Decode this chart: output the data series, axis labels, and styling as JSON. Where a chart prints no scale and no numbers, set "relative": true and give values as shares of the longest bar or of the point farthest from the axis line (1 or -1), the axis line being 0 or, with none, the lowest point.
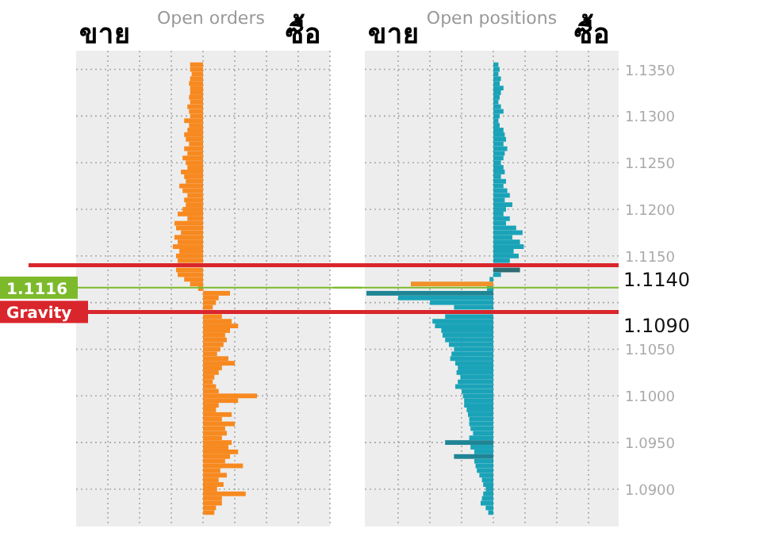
{
  "chart_data": [
    {
      "type": "bar",
      "orientation": "horizontal",
      "relative": true,
      "title": "Open orders",
      "annotations": [
        "ขาย",
        "ซื้อ"
      ],
      "grid": true,
      "tick_labels": false,
      "ylim": [
        1.086,
        1.137
      ],
      "yticks": [
        1.09,
        1.095,
        1.1,
        1.105,
        1.11,
        1.115,
        1.12,
        1.125,
        1.13,
        1.135
      ],
      "x": [
        1.1355,
        1.135,
        1.1345,
        1.134,
        1.1335,
        1.133,
        1.1325,
        1.132,
        1.1315,
        1.131,
        1.1305,
        1.13,
        1.1295,
        1.129,
        1.1285,
        1.128,
        1.1275,
        1.127,
        1.1265,
        1.126,
        1.1255,
        1.125,
        1.1245,
        1.124,
        1.1235,
        1.123,
        1.1225,
        1.122,
        1.1215,
        1.121,
        1.1205,
        1.12,
        1.1195,
        1.119,
        1.1185,
        1.118,
        1.1175,
        1.117,
        1.1165,
        1.116,
        1.1155,
        1.115,
        1.1145,
        1.114,
        1.1135,
        1.113,
        1.1125,
        1.112,
        1.1115,
        1.111,
        1.1105,
        1.11,
        1.1095,
        1.109,
        1.1085,
        1.108,
        1.1075,
        1.107,
        1.1065,
        1.106,
        1.1055,
        1.105,
        1.1045,
        1.104,
        1.1035,
        1.103,
        1.1025,
        1.102,
        1.1015,
        1.101,
        1.1005,
        1.1,
        1.0995,
        1.099,
        1.0985,
        1.098,
        1.0975,
        1.097,
        1.0965,
        1.096,
        1.0955,
        1.095,
        1.0945,
        1.094,
        1.0935,
        1.093,
        1.0925,
        1.092,
        1.0915,
        1.091,
        1.0905,
        1.09,
        1.0895,
        1.089,
        1.0885,
        1.088,
        1.0875
      ],
      "series": [
        {
          "color": "#f7891f",
          "values": [
            -0.24,
            -0.24,
            -0.21,
            -0.24,
            -0.26,
            -0.24,
            -0.24,
            -0.26,
            -0.24,
            -0.29,
            -0.26,
            -0.24,
            -0.35,
            -0.26,
            -0.29,
            -0.35,
            -0.32,
            -0.26,
            -0.35,
            -0.29,
            -0.38,
            -0.32,
            -0.29,
            -0.41,
            -0.35,
            -0.32,
            -0.44,
            -0.38,
            -0.29,
            -0.35,
            -0.32,
            -0.38,
            -0.47,
            -0.29,
            -0.53,
            -0.5,
            -0.41,
            -0.53,
            -0.47,
            -0.56,
            -0.44,
            -0.5,
            -0.47,
            null,
            -0.5,
            -0.47,
            -0.35,
            -0.24,
            -0.09,
            0.5,
            0.29,
            0.24,
            0.18,
            null,
            0.35,
            0.53,
            0.65,
            0.5,
            0.41,
            0.44,
            0.38,
            0.32,
            0.26,
            0.47,
            0.59,
            0.35,
            0.29,
            0.21,
            0.18,
            0.24,
            0.29,
            1,
            0.65,
            0.29,
            0.24,
            0.53,
            0.35,
            0.59,
            0.41,
            0.44,
            0.35,
            0.53,
            0.47,
            0.65,
            0.5,
            0.41,
            0.74,
            0.32,
            0.44,
            0.29,
            0.38,
            0.26,
            0.79,
            0.35,
            0.35,
            0.24,
            0.21
          ]
        }
      ],
      "ref_lines": [
        {
          "axis": "y",
          "value": 1.114,
          "color": "#d9262c"
        },
        {
          "axis": "y",
          "value": 1.1116,
          "color": "#7cba2c",
          "label": "1.1116"
        },
        {
          "axis": "y",
          "value": 1.109,
          "color": "#d9262c",
          "label": "Gravity"
        }
      ]
    },
    {
      "type": "bar",
      "orientation": "horizontal",
      "relative": true,
      "title": "Open positions",
      "annotations": [
        "ขาย",
        "ซื้อ"
      ],
      "grid": true,
      "tick_labels": "y",
      "ylim": [
        1.086,
        1.137
      ],
      "yticks": [
        {
          "value": 1.09,
          "label": "1.0900"
        },
        {
          "value": 1.095,
          "label": "1.0950"
        },
        {
          "value": 1.1,
          "label": "1.1000"
        },
        {
          "value": 1.105,
          "label": "1.1050"
        },
        {
          "value": 1.11,
          "label": null
        },
        {
          "value": 1.115,
          "label": "1.1150"
        },
        {
          "value": 1.12,
          "label": "1.1200"
        },
        {
          "value": 1.125,
          "label": "1.1250"
        },
        {
          "value": 1.13,
          "label": "1.1300"
        },
        {
          "value": 1.135,
          "label": "1.1350"
        }
      ],
      "x": [
        1.1355,
        1.135,
        1.1345,
        1.134,
        1.1335,
        1.133,
        1.1325,
        1.132,
        1.1315,
        1.131,
        1.1305,
        1.13,
        1.1295,
        1.129,
        1.1285,
        1.128,
        1.1275,
        1.127,
        1.1265,
        1.126,
        1.1255,
        1.125,
        1.1245,
        1.124,
        1.1235,
        1.123,
        1.1225,
        1.122,
        1.1215,
        1.121,
        1.1205,
        1.12,
        1.1195,
        1.119,
        1.1185,
        1.118,
        1.1175,
        1.117,
        1.1165,
        1.116,
        1.1155,
        1.115,
        1.1145,
        1.114,
        1.1135,
        1.113,
        1.1125,
        1.112,
        1.1115,
        1.111,
        1.1105,
        1.11,
        1.1095,
        1.109,
        1.1085,
        1.108,
        1.1075,
        1.107,
        1.1065,
        1.106,
        1.1055,
        1.105,
        1.1045,
        1.104,
        1.1035,
        1.103,
        1.1025,
        1.102,
        1.1015,
        1.101,
        1.1005,
        1.1,
        1.0995,
        1.099,
        1.0985,
        1.098,
        1.0975,
        1.097,
        1.0965,
        1.096,
        1.0955,
        1.095,
        1.0945,
        1.094,
        1.0935,
        1.093,
        1.0925,
        1.092,
        1.0915,
        1.091,
        1.0905,
        1.09,
        1.0895,
        1.089,
        1.0885,
        1.088,
        1.0875
      ],
      "series": [
        {
          "values": [
            0.04,
            0.05,
            0.04,
            0.06,
            0.05,
            0.08,
            0.06,
            0.05,
            0.04,
            0.06,
            0.08,
            0.05,
            0.04,
            0.05,
            0.08,
            0.09,
            0.1,
            0.08,
            0.11,
            0.09,
            0.08,
            0.06,
            0.08,
            0.09,
            0.06,
            0.1,
            0.08,
            0.11,
            0.13,
            0.09,
            0.15,
            0.1,
            0.08,
            0.13,
            0.1,
            0.18,
            0.23,
            0.15,
            0.21,
            0.24,
            0.16,
            0.2,
            0.13,
            null,
            0.21,
            0.06,
            -0.03,
            -0.65,
            -0.05,
            -1,
            -0.75,
            -0.5,
            -0.31,
            null,
            -0.38,
            -0.48,
            -0.46,
            -0.41,
            -0.4,
            -0.38,
            -0.35,
            -0.31,
            -0.33,
            -0.34,
            -0.3,
            -0.28,
            -0.29,
            -0.26,
            -0.28,
            -0.3,
            -0.25,
            -0.24,
            -0.23,
            -0.23,
            -0.21,
            -0.2,
            -0.19,
            -0.19,
            -0.18,
            -0.16,
            -0.19,
            -0.38,
            -0.18,
            -0.15,
            -0.31,
            -0.15,
            -0.14,
            -0.13,
            -0.11,
            -0.09,
            -0.08,
            -0.06,
            -0.08,
            -0.09,
            -0.1,
            -0.06,
            -0.04
          ]
        }
      ],
      "colors": [
        "#1aa3b8",
        "#1aa3b8",
        "#1aa3b8",
        "#1aa3b8",
        "#1aa3b8",
        "#1aa3b8",
        "#1aa3b8",
        "#1aa3b8",
        "#1aa3b8",
        "#1aa3b8",
        "#1aa3b8",
        "#1aa3b8",
        "#1aa3b8",
        "#1aa3b8",
        "#1aa3b8",
        "#1aa3b8",
        "#1aa3b8",
        "#1aa3b8",
        "#1aa3b8",
        "#1aa3b8",
        "#1aa3b8",
        "#1aa3b8",
        "#1aa3b8",
        "#1aa3b8",
        "#1aa3b8",
        "#1aa3b8",
        "#1aa3b8",
        "#1aa3b8",
        "#1aa3b8",
        "#1aa3b8",
        "#1aa3b8",
        "#1aa3b8",
        "#1aa3b8",
        "#1aa3b8",
        "#1aa3b8",
        "#1aa3b8",
        "#1aa3b8",
        "#1aa3b8",
        "#1aa3b8",
        "#1aa3b8",
        "#1aa3b8",
        "#1aa3b8",
        "#1aa3b8",
        null,
        "#2f6b74",
        "#1aa3b8",
        "#1aa3b8",
        "#f0922a",
        "#1aa3b8",
        "#1f8595",
        "#1aa3b8",
        "#1aa3b8",
        "#1aa3b8",
        null,
        "#1aa3b8",
        "#1aa3b8",
        "#1aa3b8",
        "#1aa3b8",
        "#1aa3b8",
        "#1aa3b8",
        "#1aa3b8",
        "#1aa3b8",
        "#1aa3b8",
        "#1aa3b8",
        "#1aa3b8",
        "#1aa3b8",
        "#1aa3b8",
        "#1aa3b8",
        "#1aa3b8",
        "#1aa3b8",
        "#1aa3b8",
        "#1aa3b8",
        "#1aa3b8",
        "#1aa3b8",
        "#1aa3b8",
        "#1aa3b8",
        "#1aa3b8",
        "#1aa3b8",
        "#1aa3b8",
        "#1aa3b8",
        "#1aa3b8",
        "#1f8595",
        "#1aa3b8",
        "#1aa3b8",
        "#1f8595",
        "#1aa3b8",
        "#1aa3b8",
        "#1aa3b8",
        "#1aa3b8",
        "#1aa3b8",
        "#1aa3b8",
        "#1aa3b8",
        "#1aa3b8",
        "#1aa3b8",
        "#1aa3b8",
        "#1aa3b8",
        "#1aa3b8"
      ],
      "ref_lines": [
        {
          "axis": "y",
          "value": 1.114,
          "color": "#d9262c",
          "label": "1.1140"
        },
        {
          "axis": "y",
          "value": 1.1116,
          "color": "#7cba2c"
        },
        {
          "axis": "y",
          "value": 1.109,
          "color": "#d9262c",
          "label": "1.1090"
        }
      ]
    }
  ]
}
